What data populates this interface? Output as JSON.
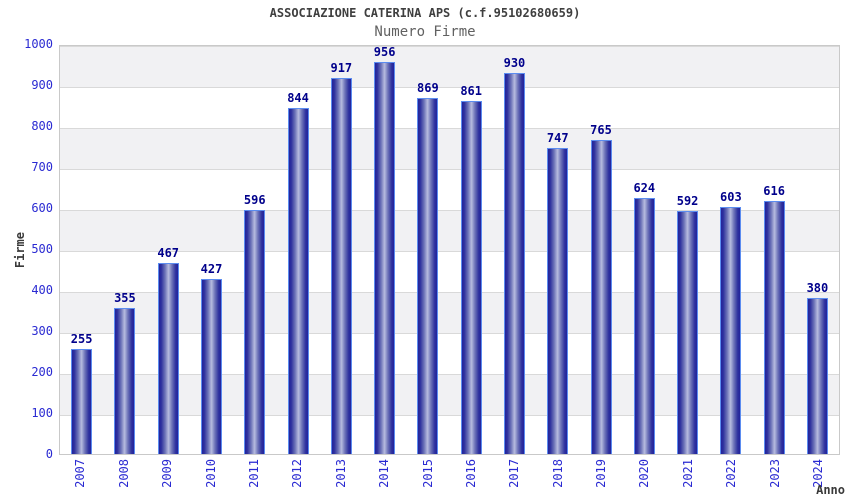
{
  "chart_data": {
    "type": "bar",
    "title": "ASSOCIAZIONE CATERINA APS (c.f.95102680659)",
    "subtitle": "Numero Firme",
    "xlabel": "Anno",
    "ylabel": "Firme",
    "categories": [
      "2007",
      "2008",
      "2009",
      "2010",
      "2011",
      "2012",
      "2013",
      "2014",
      "2015",
      "2016",
      "2017",
      "2018",
      "2019",
      "2020",
      "2021",
      "2022",
      "2023",
      "2024"
    ],
    "values": [
      255,
      355,
      467,
      427,
      596,
      844,
      917,
      956,
      869,
      861,
      930,
      747,
      765,
      624,
      592,
      603,
      616,
      380
    ],
    "ylim": [
      0,
      1000
    ],
    "ytick_step": 100,
    "grid": true,
    "legend": "none",
    "colors": {
      "bar_edge": "#23239c",
      "bar_center": "#b7bcdf",
      "bar_border": "#5b8cf0",
      "value_label": "#00008b",
      "tick_label": "#2a2ad2",
      "axis_title": "#3a3a3a",
      "band_gray": "#f1f1f3",
      "band_white": "#ffffff",
      "gridline": "#d9d9d9",
      "plot_border": "#c9c9c9",
      "title_color": "#3f3f3f",
      "subtitle_color": "#616161"
    }
  }
}
